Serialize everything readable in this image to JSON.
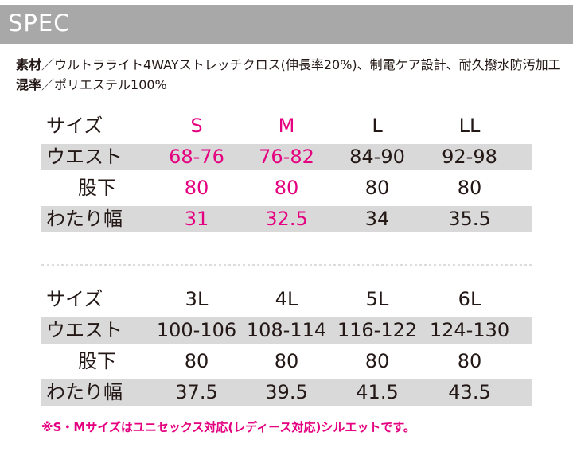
{
  "header": {
    "title": "SPEC"
  },
  "spec": {
    "material_label": "素材",
    "material_value": "／ウルトラライト4WAYストレッチクロス(伸長率20%)、制電ケア設計、耐久撥水防汚加工",
    "blend_label": "混率",
    "blend_value": "／ポリエステル100%"
  },
  "table1": {
    "header": [
      "サイズ",
      "S",
      "M",
      "L",
      "LL"
    ],
    "rows": [
      [
        "ウエスト",
        "68-76",
        "76-82",
        "84-90",
        "92-98"
      ],
      [
        "股下",
        "80",
        "80",
        "80",
        "80"
      ],
      [
        "わたり幅",
        "31",
        "32.5",
        "34",
        "35.5"
      ]
    ]
  },
  "table2": {
    "header": [
      "サイズ",
      "3L",
      "4L",
      "5L",
      "6L"
    ],
    "rows": [
      [
        "ウエスト",
        "100-106",
        "108-114",
        "116-122",
        "124-130"
      ],
      [
        "股下",
        "80",
        "80",
        "80",
        "80"
      ],
      [
        "わたり幅",
        "37.5",
        "39.5",
        "41.5",
        "43.5"
      ]
    ]
  },
  "note": "※S・Mサイズはユニセックス対応(レディース対応)シルエットです。",
  "colors": {
    "accent": "#e4007f",
    "header_bg": "#a8a8a8",
    "row_shade": "#d9d9d9"
  }
}
